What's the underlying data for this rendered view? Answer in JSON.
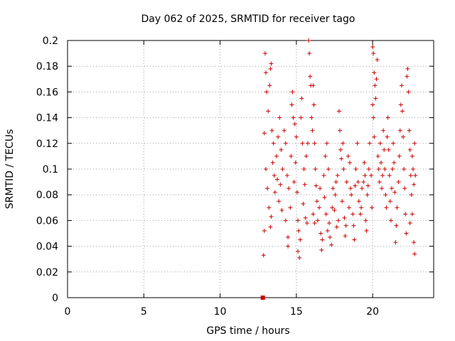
{
  "chart_data": {
    "type": "scatter",
    "title": "Day 062 of 2025, SRMTID for receiver tago",
    "xlabel": "GPS time / hours",
    "ylabel": "SRMTID / TECUs",
    "xlim": [
      0,
      24
    ],
    "ylim": [
      0,
      0.2
    ],
    "xticks": [
      0,
      5,
      10,
      15,
      20
    ],
    "xtick_labels": [
      "0",
      "5",
      "10",
      "15",
      "20"
    ],
    "yticks": [
      0,
      0.02,
      0.04,
      0.06,
      0.08,
      0.1,
      0.12,
      0.14,
      0.16,
      0.18,
      0.2
    ],
    "ytick_labels": [
      "0",
      "0.02",
      "0.04",
      "0.06",
      "0.08",
      "0.1",
      "0.12",
      "0.14",
      "0.16",
      "0.18",
      "0.2"
    ],
    "grid": true,
    "marker": "+",
    "color": "#cc0000",
    "extra_marker": {
      "shape": "square",
      "x": 12.8,
      "y": 0.0
    },
    "series": [
      {
        "name": "SRMTID",
        "points": [
          [
            12.85,
            0.033
          ],
          [
            12.9,
            0.052
          ],
          [
            12.95,
            0.19
          ],
          [
            13.0,
            0.175
          ],
          [
            13.05,
            0.16
          ],
          [
            12.9,
            0.128
          ],
          [
            13.0,
            0.1
          ],
          [
            13.1,
            0.085
          ],
          [
            13.2,
            0.07
          ],
          [
            13.3,
            0.055
          ],
          [
            13.3,
            0.178
          ],
          [
            13.35,
            0.182
          ],
          [
            13.25,
            0.165
          ],
          [
            13.15,
            0.145
          ],
          [
            13.4,
            0.13
          ],
          [
            13.5,
            0.12
          ],
          [
            13.45,
            0.105
          ],
          [
            13.55,
            0.095
          ],
          [
            13.6,
            0.082
          ],
          [
            13.35,
            0.063
          ],
          [
            13.7,
            0.11
          ],
          [
            13.8,
            0.125
          ],
          [
            13.9,
            0.14
          ],
          [
            14.0,
            0.115
          ],
          [
            14.1,
            0.1
          ],
          [
            14.2,
            0.13
          ],
          [
            13.75,
            0.092
          ],
          [
            13.85,
            0.075
          ],
          [
            13.95,
            0.088
          ],
          [
            14.05,
            0.068
          ],
          [
            14.3,
            0.12
          ],
          [
            14.4,
            0.095
          ],
          [
            14.5,
            0.085
          ],
          [
            14.3,
            0.06
          ],
          [
            14.45,
            0.04
          ],
          [
            14.45,
            0.047
          ],
          [
            14.6,
            0.07
          ],
          [
            14.7,
            0.15
          ],
          [
            14.75,
            0.16
          ],
          [
            14.8,
            0.14
          ],
          [
            14.9,
            0.135
          ],
          [
            14.65,
            0.11
          ],
          [
            14.85,
            0.09
          ],
          [
            14.95,
            0.105
          ],
          [
            15.0,
            0.125
          ],
          [
            15.05,
            0.082
          ],
          [
            15.1,
            0.06
          ],
          [
            15.15,
            0.052
          ],
          [
            15.1,
            0.036
          ],
          [
            15.2,
            0.031
          ],
          [
            15.25,
            0.045
          ],
          [
            15.3,
            0.14
          ],
          [
            15.35,
            0.155
          ],
          [
            15.4,
            0.12
          ],
          [
            15.5,
            0.1
          ],
          [
            15.55,
            0.088
          ],
          [
            15.45,
            0.073
          ],
          [
            15.6,
            0.062
          ],
          [
            15.7,
            0.058
          ],
          [
            15.8,
            0.2
          ],
          [
            15.85,
            0.19
          ],
          [
            15.9,
            0.172
          ],
          [
            15.95,
            0.165
          ],
          [
            16.0,
            0.14
          ],
          [
            16.1,
            0.165
          ],
          [
            16.15,
            0.15
          ],
          [
            15.75,
            0.12
          ],
          [
            15.65,
            0.11
          ],
          [
            16.05,
            0.13
          ],
          [
            16.2,
            0.12
          ],
          [
            16.25,
            0.1
          ],
          [
            16.3,
            0.087
          ],
          [
            16.1,
            0.065
          ],
          [
            16.2,
            0.058
          ],
          [
            16.35,
            0.075
          ],
          [
            16.4,
            0.06
          ],
          [
            16.5,
            0.07
          ],
          [
            16.6,
            0.05
          ],
          [
            16.65,
            0.037
          ],
          [
            16.7,
            0.045
          ],
          [
            16.55,
            0.085
          ],
          [
            16.8,
            0.095
          ],
          [
            16.9,
            0.11
          ],
          [
            17.0,
            0.12
          ],
          [
            17.1,
            0.1
          ],
          [
            16.85,
            0.078
          ],
          [
            16.95,
            0.065
          ],
          [
            17.05,
            0.052
          ],
          [
            17.15,
            0.058
          ],
          [
            17.2,
            0.047
          ],
          [
            17.3,
            0.041
          ],
          [
            17.35,
            0.07
          ],
          [
            17.4,
            0.085
          ],
          [
            17.5,
            0.068
          ],
          [
            17.55,
            0.08
          ],
          [
            17.6,
            0.09
          ],
          [
            17.7,
            0.095
          ],
          [
            17.8,
            0.145
          ],
          [
            17.85,
            0.13
          ],
          [
            17.9,
            0.115
          ],
          [
            17.95,
            0.108
          ],
          [
            18.05,
            0.12
          ],
          [
            18.1,
            0.1
          ],
          [
            17.75,
            0.06
          ],
          [
            17.65,
            0.055
          ],
          [
            18.0,
            0.075
          ],
          [
            18.15,
            0.062
          ],
          [
            18.2,
            0.048
          ],
          [
            18.25,
            0.056
          ],
          [
            18.3,
            0.09
          ],
          [
            18.4,
            0.11
          ],
          [
            18.5,
            0.105
          ],
          [
            18.55,
            0.085
          ],
          [
            18.6,
            0.08
          ],
          [
            18.45,
            0.07
          ],
          [
            18.7,
            0.065
          ],
          [
            18.75,
            0.056
          ],
          [
            18.8,
            0.045
          ],
          [
            18.85,
            0.087
          ],
          [
            18.9,
            0.1
          ],
          [
            19.0,
            0.12
          ],
          [
            19.05,
            0.09
          ],
          [
            19.1,
            0.075
          ],
          [
            19.2,
            0.065
          ],
          [
            19.25,
            0.07
          ],
          [
            19.3,
            0.085
          ],
          [
            19.4,
            0.09
          ],
          [
            19.45,
            0.105
          ],
          [
            19.5,
            0.095
          ],
          [
            19.55,
            0.06
          ],
          [
            19.6,
            0.052
          ],
          [
            19.65,
            0.08
          ],
          [
            19.7,
            0.087
          ],
          [
            19.75,
            0.1
          ],
          [
            19.8,
            0.12
          ],
          [
            19.9,
            0.095
          ],
          [
            19.95,
            0.07
          ],
          [
            20.0,
            0.195
          ],
          [
            20.05,
            0.19
          ],
          [
            20.1,
            0.175
          ],
          [
            20.15,
            0.165
          ],
          [
            20.2,
            0.155
          ],
          [
            20.25,
            0.17
          ],
          [
            20.3,
            0.185
          ],
          [
            20.0,
            0.15
          ],
          [
            20.05,
            0.14
          ],
          [
            20.1,
            0.125
          ],
          [
            20.35,
            0.11
          ],
          [
            20.4,
            0.1
          ],
          [
            20.45,
            0.09
          ],
          [
            20.5,
            0.12
          ],
          [
            20.55,
            0.105
          ],
          [
            20.6,
            0.085
          ],
          [
            20.65,
            0.095
          ],
          [
            20.7,
            0.13
          ],
          [
            20.75,
            0.115
          ],
          [
            20.8,
            0.1
          ],
          [
            20.85,
            0.08
          ],
          [
            20.9,
            0.07
          ],
          [
            20.95,
            0.125
          ],
          [
            21.0,
            0.14
          ],
          [
            21.05,
            0.115
          ],
          [
            21.1,
            0.095
          ],
          [
            21.15,
            0.075
          ],
          [
            21.2,
            0.06
          ],
          [
            21.25,
            0.085
          ],
          [
            21.3,
            0.1
          ],
          [
            21.35,
            0.12
          ],
          [
            21.4,
            0.105
          ],
          [
            21.45,
            0.082
          ],
          [
            21.5,
            0.043
          ],
          [
            21.55,
            0.056
          ],
          [
            21.6,
            0.07
          ],
          [
            21.7,
            0.09
          ],
          [
            21.75,
            0.11
          ],
          [
            21.8,
            0.13
          ],
          [
            21.85,
            0.15
          ],
          [
            21.9,
            0.165
          ],
          [
            21.95,
            0.145
          ],
          [
            22.0,
            0.125
          ],
          [
            22.05,
            0.1
          ],
          [
            22.1,
            0.085
          ],
          [
            22.15,
            0.065
          ],
          [
            22.2,
            0.05
          ],
          [
            22.25,
            0.172
          ],
          [
            22.3,
            0.178
          ],
          [
            22.35,
            0.16
          ],
          [
            22.4,
            0.13
          ],
          [
            22.45,
            0.115
          ],
          [
            22.5,
            0.095
          ],
          [
            22.55,
            0.08
          ],
          [
            22.6,
            0.11
          ],
          [
            22.65,
            0.1
          ],
          [
            22.7,
            0.088
          ],
          [
            22.75,
            0.12
          ],
          [
            22.8,
            0.095
          ],
          [
            22.7,
            0.043
          ],
          [
            22.75,
            0.034
          ],
          [
            22.6,
            0.065
          ],
          [
            22.45,
            0.058
          ]
        ]
      }
    ]
  }
}
